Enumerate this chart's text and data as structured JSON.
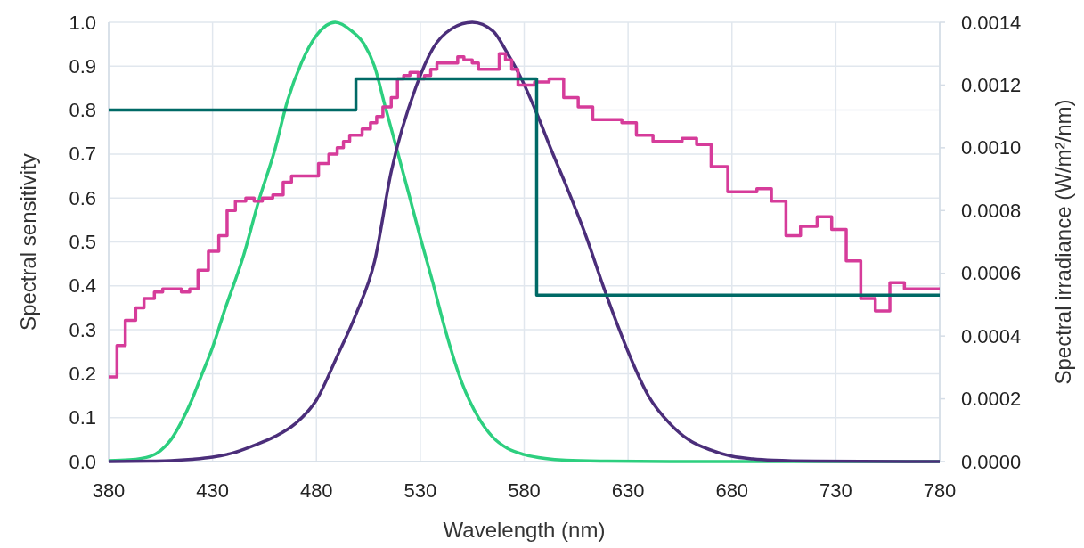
{
  "chart_data": {
    "type": "line",
    "xlabel": "Wavelength (nm)",
    "ylabel": "Spectral sensitivity",
    "y2label": "Spectral irradiance (W/m²/nm)",
    "xlim": [
      380,
      780
    ],
    "xticks": [
      380,
      430,
      480,
      530,
      580,
      630,
      680,
      730,
      780
    ],
    "ylim": [
      0,
      1
    ],
    "yticks": [
      {
        "value": 0,
        "label": "0.0"
      },
      {
        "value": 0.1,
        "label": "0.1"
      },
      {
        "value": 0.2,
        "label": "0.2"
      },
      {
        "value": 0.3,
        "label": "0.3"
      },
      {
        "value": 0.4,
        "label": "0.4"
      },
      {
        "value": 0.5,
        "label": "0.5"
      },
      {
        "value": 0.6,
        "label": "0.6"
      },
      {
        "value": 0.7,
        "label": "0.7"
      },
      {
        "value": 0.8,
        "label": "0.8"
      },
      {
        "value": 0.9,
        "label": "0.9"
      },
      {
        "value": 1,
        "label": "1.0"
      }
    ],
    "y2lim": [
      0,
      0.0014
    ],
    "y2ticks": [
      {
        "value": 0,
        "label": "0.0000"
      },
      {
        "value": 0.0002,
        "label": "0.0002"
      },
      {
        "value": 0.0004,
        "label": "0.0004"
      },
      {
        "value": 0.0006,
        "label": "0.0006"
      },
      {
        "value": 0.0008,
        "label": "0.0008"
      },
      {
        "value": 0.001,
        "label": "0.0010"
      },
      {
        "value": 0.0012,
        "label": "0.0012"
      },
      {
        "value": 0.0014,
        "label": "0.0014"
      }
    ],
    "grid": true,
    "series": [
      {
        "color": "#2dcf7f",
        "x": [
          380,
          390,
          400,
          405,
          410,
          415,
          420,
          425,
          430,
          436,
          445,
          452,
          460,
          466,
          473,
          480,
          489,
          497,
          503,
          508,
          513,
          519,
          525,
          530,
          536,
          542,
          550,
          558,
          565,
          572,
          580,
          590,
          600,
          620,
          650,
          780
        ],
        "values": [
          0.002,
          0.004,
          0.012,
          0.025,
          0.05,
          0.09,
          0.14,
          0.2,
          0.26,
          0.347,
          0.47,
          0.59,
          0.71,
          0.82,
          0.91,
          0.97,
          1.0,
          0.98,
          0.95,
          0.899,
          0.81,
          0.706,
          0.6,
          0.51,
          0.408,
          0.3,
          0.18,
          0.1,
          0.055,
          0.03,
          0.016,
          0.007,
          0.003,
          0.001,
          0,
          0
        ]
      },
      {
        "color": "#4b2e7a",
        "x": [
          380,
          400,
          410,
          420,
          430,
          440,
          450,
          460,
          470,
          480,
          490,
          499,
          508,
          516,
          528,
          536,
          545,
          555,
          565,
          572,
          579,
          586,
          593,
          601,
          610,
          618,
          625,
          630,
          640,
          650,
          660,
          670,
          680,
          690,
          700,
          720,
          780
        ],
        "values": [
          0,
          0.001,
          0.002,
          0.005,
          0.01,
          0.02,
          0.037,
          0.057,
          0.087,
          0.14,
          0.24,
          0.335,
          0.456,
          0.66,
          0.854,
          0.94,
          0.985,
          1.0,
          0.98,
          0.929,
          0.868,
          0.793,
          0.71,
          0.619,
          0.51,
          0.4,
          0.31,
          0.25,
          0.148,
          0.087,
          0.047,
          0.026,
          0.012,
          0.006,
          0.003,
          0.001,
          0
        ]
      },
      {
        "type": "step",
        "axis": "y2",
        "color": "#d63c9a",
        "x": [
          380,
          384,
          388,
          393,
          397,
          402,
          406,
          410,
          415,
          419,
          423,
          428,
          433,
          437,
          441,
          446,
          450,
          454,
          459,
          464,
          468,
          476,
          481,
          486,
          490,
          493,
          496,
          502,
          506,
          509,
          512,
          516,
          519,
          522,
          525,
          529,
          532,
          535,
          538,
          545,
          548,
          551,
          555,
          558,
          564,
          568,
          571,
          574,
          577,
          585,
          592,
          599,
          606,
          613,
          620,
          627,
          634,
          642,
          656,
          663,
          670,
          678,
          692,
          699,
          706,
          713,
          721,
          728,
          735,
          742,
          749,
          756,
          763,
          780
        ],
        "values": [
          0.00027,
          0.00037,
          0.00045,
          0.00049,
          0.00052,
          0.00054,
          0.00055,
          0.00055,
          0.00054,
          0.00055,
          0.00061,
          0.00067,
          0.00072,
          0.0008,
          0.00083,
          0.00084,
          0.00083,
          0.00084,
          0.00085,
          0.00089,
          0.00091,
          0.00091,
          0.00095,
          0.00098,
          0.001,
          0.00102,
          0.00104,
          0.00106,
          0.00108,
          0.0011,
          0.00113,
          0.00116,
          0.00122,
          0.00123,
          0.00124,
          0.00122,
          0.00123,
          0.00125,
          0.00127,
          0.00127,
          0.00129,
          0.00128,
          0.00127,
          0.00125,
          0.00125,
          0.0013,
          0.00128,
          0.00125,
          0.0012,
          0.00121,
          0.00122,
          0.00116,
          0.00113,
          0.00109,
          0.00109,
          0.00108,
          0.00104,
          0.00102,
          0.00103,
          0.00101,
          0.00094,
          0.00086,
          0.00087,
          0.00083,
          0.00072,
          0.00075,
          0.00078,
          0.00074,
          0.00064,
          0.00052,
          0.00048,
          0.00057,
          0.00055,
          0.00055
        ]
      },
      {
        "type": "step",
        "axis": "y2",
        "color": "#006a66",
        "x": [
          380,
          499,
          586,
          780
        ],
        "values": [
          0.00112,
          0.00122,
          0.00053,
          0.00053
        ]
      }
    ]
  }
}
